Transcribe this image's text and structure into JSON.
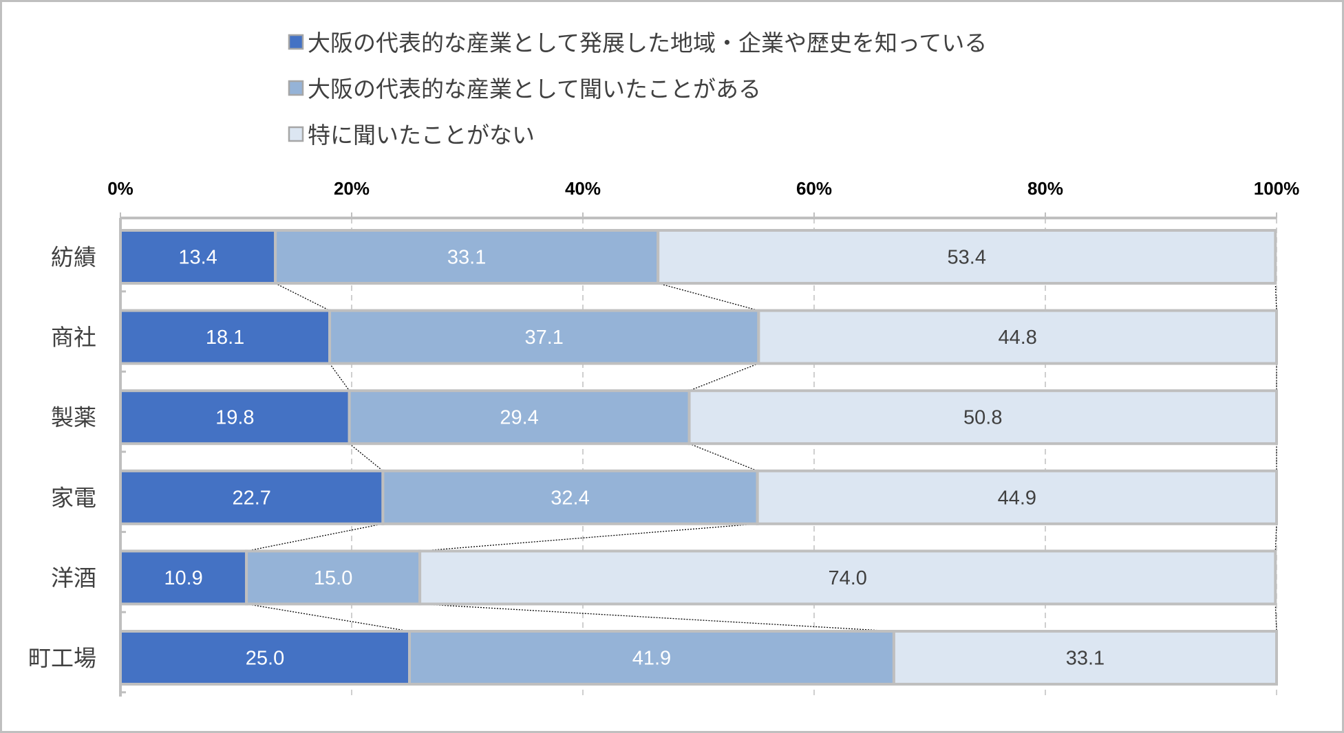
{
  "chart_data": {
    "type": "bar",
    "orientation": "horizontal",
    "stacked": "percent",
    "categories": [
      "紡績",
      "商社",
      "製薬",
      "家電",
      "洋酒",
      "町工場"
    ],
    "series": [
      {
        "name": "大阪の代表的な産業として発展した地域・企業や歴史を知っている",
        "color": "#4472c4",
        "label_color": "#ffffff",
        "values": [
          13.4,
          18.1,
          19.8,
          22.7,
          10.9,
          25.0
        ],
        "labels": [
          "13.4",
          "18.1",
          "19.8",
          "22.7",
          "10.9",
          "25.0"
        ]
      },
      {
        "name": "大阪の代表的な産業として聞いたことがある",
        "color": "#95b3d7",
        "label_color": "#ffffff",
        "values": [
          33.1,
          37.1,
          29.4,
          32.4,
          15.0,
          41.9
        ],
        "labels": [
          "33.1",
          "37.1",
          "29.4",
          "32.4",
          "15.0",
          "41.9"
        ]
      },
      {
        "name": "特に聞いたことがない",
        "color": "#dce6f2",
        "label_color": "#404040",
        "values": [
          53.4,
          44.8,
          50.8,
          44.9,
          74.0,
          33.1
        ],
        "labels": [
          "53.4",
          "44.8",
          "50.8",
          "44.9",
          "74.0",
          "33.1"
        ]
      }
    ],
    "xlim": [
      0,
      100
    ],
    "xticks": [
      0,
      20,
      40,
      60,
      80,
      100
    ],
    "xtick_labels": [
      "0%",
      "20%",
      "40%",
      "60%",
      "80%",
      "100%"
    ],
    "axis_position": "top",
    "grid": "vertical dashed",
    "legend_position": "top",
    "series_lines": true,
    "title": "",
    "xlabel": "",
    "ylabel": ""
  }
}
